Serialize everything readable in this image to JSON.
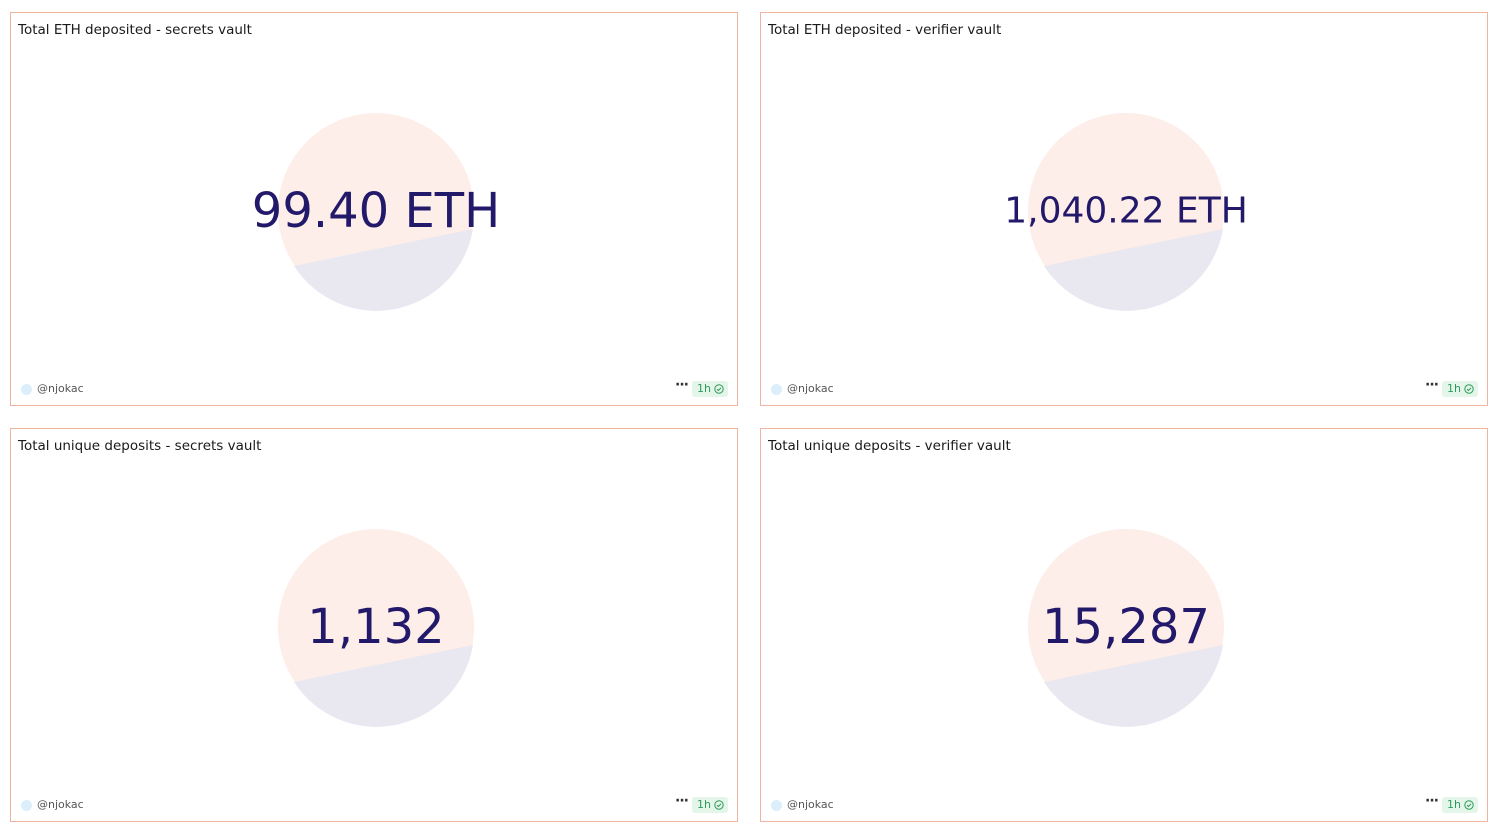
{
  "panels": [
    {
      "title": "Total ETH deposited - secrets vault",
      "value": "99.40 ETH",
      "author": "@njokac",
      "refresh": "1h"
    },
    {
      "title": "Total ETH deposited - verifier vault",
      "value": "1,040.22 ETH",
      "author": "@njokac",
      "refresh": "1h"
    },
    {
      "title": "Total unique deposits - secrets vault",
      "value": "1,132",
      "author": "@njokac",
      "refresh": "1h"
    },
    {
      "title": "Total unique deposits - verifier vault",
      "value": "15,287",
      "author": "@njokac",
      "refresh": "1h"
    }
  ]
}
